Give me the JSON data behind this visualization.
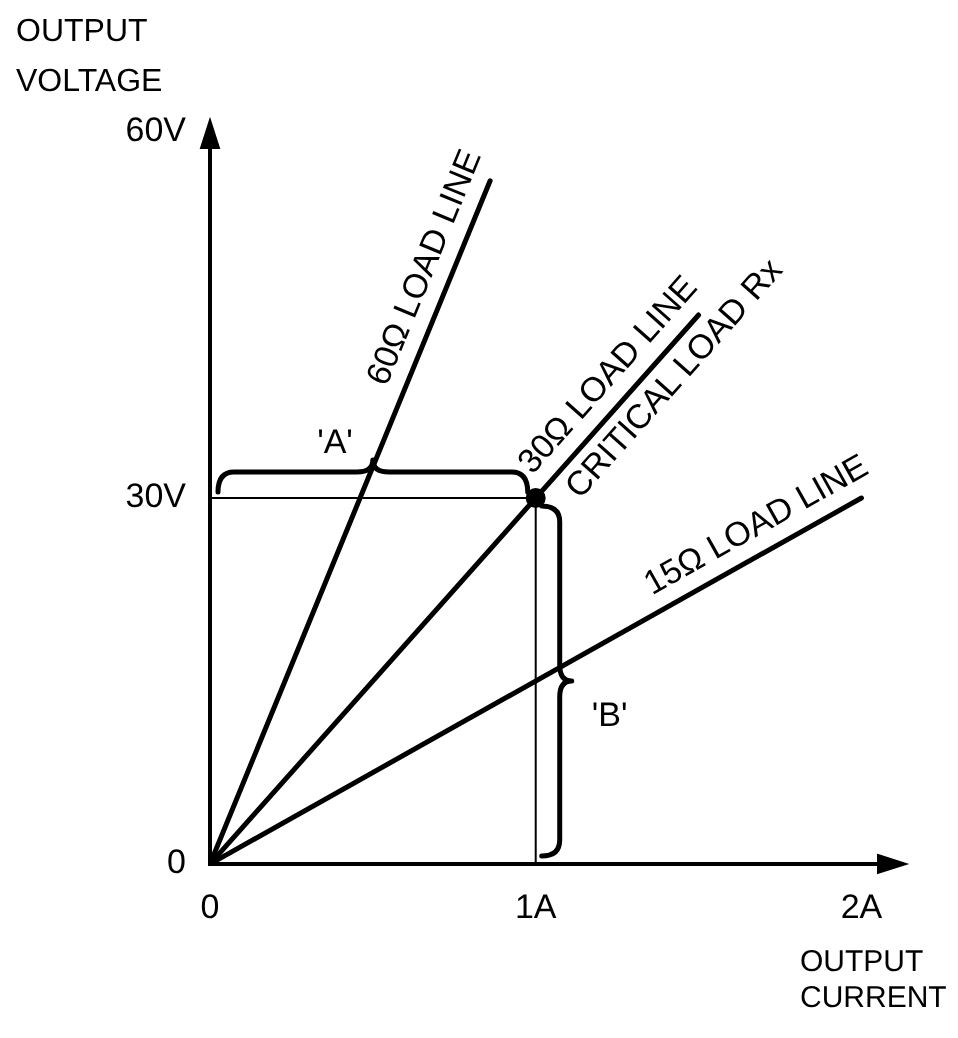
{
  "chart_data": {
    "type": "line",
    "xlabel": "OUTPUT CURRENT",
    "ylabel": "OUTPUT VOLTAGE",
    "xlim": [
      0,
      2.1
    ],
    "ylim": [
      0,
      60
    ],
    "xticks": [
      0,
      {
        "value": 1,
        "label": "1A"
      },
      {
        "value": 2,
        "label": "2A"
      }
    ],
    "yticks": [
      0,
      {
        "value": 30,
        "label": "30V"
      },
      {
        "value": 60,
        "label": "60V"
      }
    ],
    "grid": false,
    "legend": false,
    "marker": "none",
    "line_style": "solid",
    "series": [
      {
        "name": "60Ω LOAD LINE",
        "color": "#000000",
        "x": [
          0,
          0.86
        ],
        "values": [
          0,
          56
        ]
      },
      {
        "name": "30Ω LOAD LINE",
        "color": "#000000",
        "x": [
          0,
          1.5
        ],
        "values": [
          0,
          45
        ]
      },
      {
        "name": "15Ω LOAD LINE",
        "color": "#000000",
        "x": [
          0,
          2
        ],
        "values": [
          0,
          30
        ]
      },
      {
        "type": "line",
        "color": "#000000",
        "x": [
          0,
          1,
          1
        ],
        "values": [
          30,
          30,
          0
        ]
      },
      {
        "type": "scatter",
        "name": "CRITICAL LOAD Rx",
        "color": "#000000",
        "marker": "circle",
        "x": [
          1
        ],
        "values": [
          30
        ]
      }
    ],
    "annotations": [
      {
        "text": "'A'",
        "x": 0.5,
        "y": 30
      },
      {
        "text": "'B'",
        "x": 1,
        "y": 15
      }
    ]
  }
}
